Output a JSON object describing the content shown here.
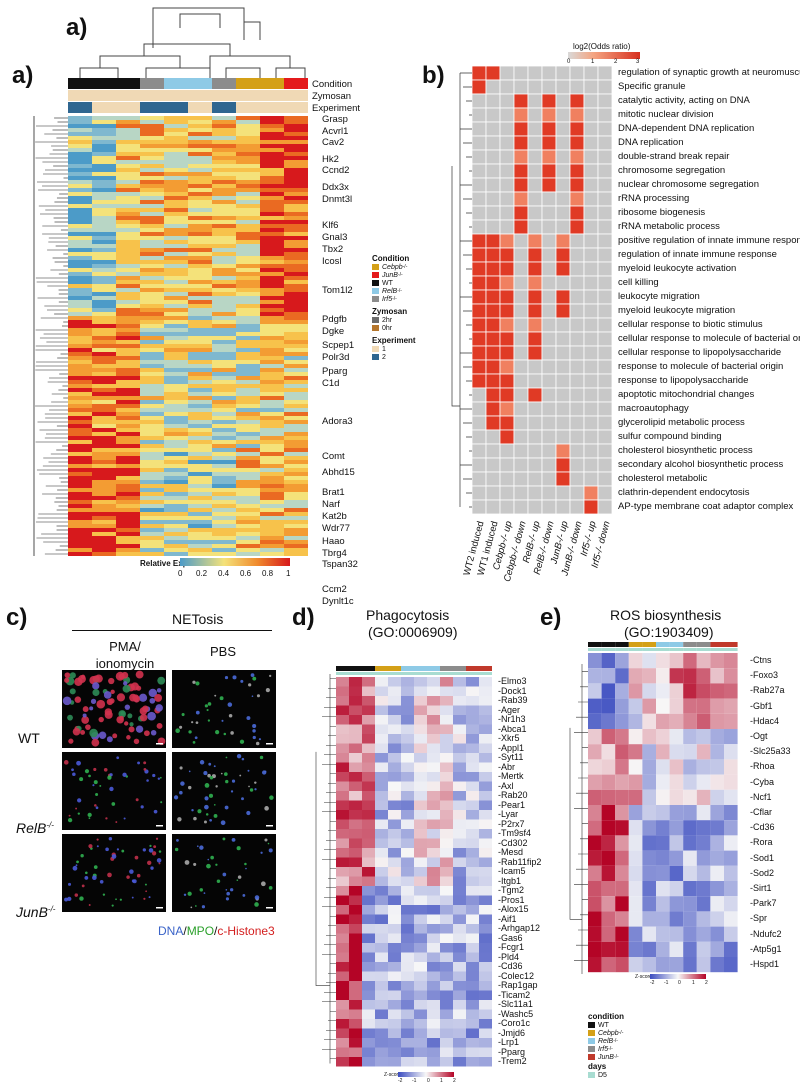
{
  "panel_a": {
    "top_label": "a)",
    "label": "a)",
    "annotation_rows": [
      "Condition",
      "Zymosan",
      "Experiment"
    ],
    "genes": [
      "Grasp",
      "Acvrl1",
      "Cav2",
      "Hk2",
      "Ccnd2",
      "Ddx3x",
      "Dnmt3l",
      "Klf6",
      "Gnal3",
      "Tbx2",
      "Icosl",
      "Tom1l2",
      "Pdgfb",
      "Dgke",
      "Scpep1",
      "Polr3d",
      "Pparg",
      "C1d",
      "Adora3",
      "Comt",
      "Abhd15",
      "Brat1",
      "Narf",
      "Kat2b",
      "Wdr77",
      "Haao",
      "Tbrg4",
      "Tspan32",
      "Ccm2",
      "Dynlt1c"
    ],
    "colorbar_title": "Relative Expression",
    "colorbar_ticks": [
      "0",
      "0.2",
      "0.4",
      "0.6",
      "0.8",
      "1"
    ],
    "legend": {
      "condition_title": "Condition",
      "condition_items": [
        {
          "label": "Cebpb",
          "sup": "-/-",
          "color": "#d4a017"
        },
        {
          "label": "JunB",
          "sup": "-/-",
          "color": "#e41a1c"
        },
        {
          "label": "WT",
          "sup": "",
          "color": "#111111"
        },
        {
          "label": "RelB",
          "sup": "-/-",
          "color": "#8ecae6"
        },
        {
          "label": "Irf5",
          "sup": "-/-",
          "color": "#8c8c8c"
        }
      ],
      "zymosan_title": "Zymosan",
      "zymosan_items": [
        {
          "label": "2hr",
          "color": "#6b6b6b"
        },
        {
          "label": "0hr",
          "color": "#b5762c"
        }
      ],
      "experiment_title": "Experiment",
      "experiment_items": [
        {
          "label": "1",
          "color": "#f0d9b5"
        },
        {
          "label": "2",
          "color": "#2f6690"
        }
      ]
    }
  },
  "panel_b": {
    "label": "b)",
    "scale_title": "log2(Odds ratio)",
    "scale_ticks": [
      "0",
      "1",
      "2",
      "3"
    ],
    "terms": [
      "regulation of synaptic growth at neuromuscula..",
      "Specific granule",
      "catalytic activity, acting on DNA",
      "mitotic nuclear division",
      "DNA-dependent DNA replication",
      "DNA replication",
      "double-strand break repair",
      "chromosome segregation",
      "nuclear chromosome segregation",
      "rRNA processing",
      "ribosome biogenesis",
      "rRNA metabolic process",
      "positive regulation of innate immune responses",
      "regulation of innate immune response",
      "myeloid leukocyte activation",
      "cell killing",
      "leukocyte migration",
      "myeloid leukocyte migration",
      "cellular response to biotic stimulus",
      "cellular response to molecule of bacterial or ..",
      "cellular response to lipopolysaccharide",
      "response to molecule of bacterial origin",
      "response to lipopolysaccharide",
      "apoptotic mitochondrial changes",
      "macroautophagy",
      "glycerolipid metabolic process",
      "sulfur compound binding",
      "cholesterol biosynthetic process",
      "secondary alcohol biosynthetic process",
      "cholesterol metabolic",
      "clathrin-dependent endocytosis",
      "AP-type membrane coat adaptor complex"
    ],
    "columns": [
      "WT2 induced",
      "WT1 induced",
      "Cebpb-/- up",
      "Cebpb-/- down",
      "RelB-/- up",
      "RelB-/- down",
      "JunB-/- up",
      "JunB-/- down",
      "Irf5-/- up",
      "Irf5-/- down"
    ]
  },
  "panel_c": {
    "label": "c)",
    "title": "NETosis",
    "col1": "PMA/\nionomycin",
    "col1_line1": "PMA/",
    "col1_line2": "ionomycin",
    "col2": "PBS",
    "rows": [
      {
        "label": "WT",
        "sup": ""
      },
      {
        "label": "RelB",
        "sup": "-/-"
      },
      {
        "label": "JunB",
        "sup": "-/-"
      }
    ],
    "caption_dna": "DNA",
    "caption_mpo": "MPO",
    "caption_hist": "c-Histone3",
    "caption_sep": "/"
  },
  "panel_d": {
    "label": "d)",
    "title": "Phagocytosis",
    "subtitle": "(GO:0006909)",
    "genes": [
      "Elmo3",
      "Dock1",
      "Rab39",
      "Ager",
      "Nr1h3",
      "Abca1",
      "Xkr5",
      "Appl1",
      "Syt11",
      "Abr",
      "Mertk",
      "Axl",
      "Rab20",
      "Pear1",
      "Lyar",
      "P2rx7",
      "Tm9sf4",
      "Cd302",
      "Mesd",
      "Rab11fip2",
      "Icam5",
      "Itgb1",
      "Tgm2",
      "Pros1",
      "Alox15",
      "Aif1",
      "Arhgap12",
      "Gas6",
      "Fcgr1",
      "Pld4",
      "Cd36",
      "Colec12",
      "Rap1gap",
      "Ticam2",
      "Slc11a1",
      "Washc5",
      "Coro1c",
      "Jmjd6",
      "Lrp1",
      "Pparg",
      "Trem2"
    ],
    "scale_title": "Z-score",
    "scale_ticks": [
      "-2",
      "-1",
      "0",
      "1",
      "2"
    ]
  },
  "panel_e": {
    "label": "e)",
    "title": "ROS biosynthesis",
    "subtitle": "(GO:1903409)",
    "genes": [
      "Ctns",
      "Foxo3",
      "Rab27a",
      "Gbf1",
      "Hdac4",
      "Ogt",
      "Slc25a33",
      "Rhoa",
      "Cyba",
      "Ncf1",
      "Cflar",
      "Cd36",
      "Rora",
      "Sod1",
      "Sod2",
      "Sirt1",
      "Park7",
      "Spr",
      "Ndufc2",
      "Atp5g1",
      "Hspd1"
    ],
    "scale_title": "Z-score",
    "scale_ticks": [
      "-2",
      "-1",
      "0",
      "1",
      "2"
    ],
    "legend": {
      "condition_title": "condition",
      "condition_items": [
        {
          "label": "WT",
          "sup": "",
          "color": "#111111"
        },
        {
          "label": "Cebpb",
          "sup": "-/-",
          "color": "#d4a017"
        },
        {
          "label": "RelB",
          "sup": "-/-",
          "color": "#8ecae6"
        },
        {
          "label": "Irf5",
          "sup": "-/-",
          "color": "#8c8c8c"
        },
        {
          "label": "JunB",
          "sup": "-/-",
          "color": "#c0392b"
        }
      ],
      "days_title": "days",
      "days_items": [
        {
          "label": "D5",
          "color": "#a8dcd1"
        }
      ]
    }
  }
}
